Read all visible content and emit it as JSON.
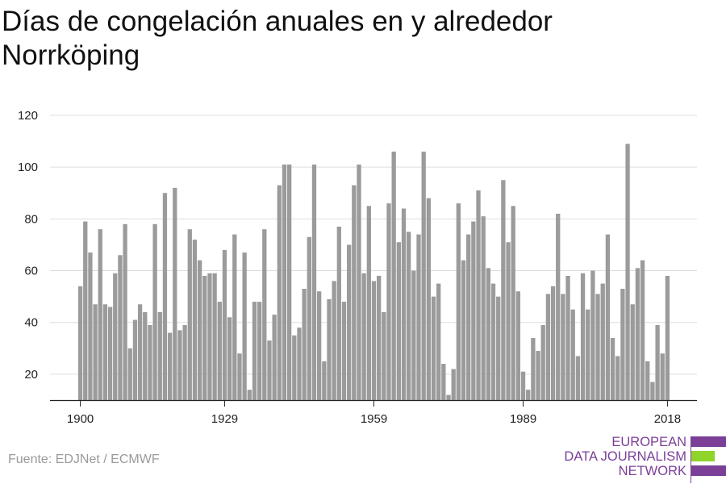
{
  "title": "Días de congelación anuales en y alrededor Norrköping",
  "source": "Fuente: EDJNet / ECMWF",
  "logo": {
    "line1": "EUROPEAN",
    "line2": "DATA JOURNALISM",
    "line3": "NETWORK",
    "colors": {
      "text": "#7b3f98",
      "purple": "#7b3f98",
      "green": "#8fd42a"
    }
  },
  "chart_data": {
    "type": "bar",
    "title": "Días de congelación anuales en y alrededor Norrköping",
    "xlabel": "",
    "ylabel": "",
    "x_ticks": [
      1900,
      1929,
      1959,
      1989,
      2018
    ],
    "y_ticks": [
      20,
      40,
      60,
      80,
      100,
      120
    ],
    "xlim": [
      1899.5,
      2018.5
    ],
    "ylim": [
      10,
      120
    ],
    "grid": true,
    "bar_color": "#9b9b9b",
    "series": [
      {
        "x": [
          1900,
          1901,
          1902,
          1903,
          1904,
          1905,
          1906,
          1907,
          1908,
          1909,
          1910,
          1911,
          1912,
          1913,
          1914,
          1915,
          1916,
          1917,
          1918,
          1919,
          1920,
          1921,
          1922,
          1923,
          1924,
          1925,
          1926,
          1927,
          1928,
          1929,
          1930,
          1931,
          1932,
          1933,
          1934,
          1935,
          1936,
          1937,
          1938,
          1939,
          1940,
          1941,
          1942,
          1943,
          1944,
          1945,
          1946,
          1947,
          1948,
          1949,
          1950,
          1951,
          1952,
          1953,
          1954,
          1955,
          1956,
          1957,
          1958,
          1959,
          1960,
          1961,
          1962,
          1963,
          1964,
          1965,
          1966,
          1967,
          1968,
          1969,
          1970,
          1971,
          1972,
          1973,
          1974,
          1975,
          1976,
          1977,
          1978,
          1979,
          1980,
          1981,
          1982,
          1983,
          1984,
          1985,
          1986,
          1987,
          1988,
          1989,
          1990,
          1991,
          1992,
          1993,
          1994,
          1995,
          1996,
          1997,
          1998,
          1999,
          2000,
          2001,
          2002,
          2003,
          2004,
          2005,
          2006,
          2007,
          2008,
          2009,
          2010,
          2011,
          2012,
          2013,
          2014,
          2015,
          2016,
          2017,
          2018
        ],
        "values": [
          54,
          79,
          67,
          47,
          76,
          47,
          46,
          59,
          66,
          78,
          30,
          41,
          47,
          44,
          39,
          78,
          44,
          90,
          36,
          92,
          37,
          39,
          76,
          72,
          64,
          58,
          59,
          59,
          48,
          68,
          42,
          74,
          28,
          67,
          14,
          48,
          48,
          76,
          33,
          43,
          93,
          101,
          101,
          35,
          38,
          53,
          73,
          101,
          52,
          25,
          49,
          56,
          77,
          48,
          70,
          93,
          101,
          59,
          85,
          56,
          58,
          44,
          86,
          106,
          71,
          84,
          75,
          60,
          74,
          106,
          88,
          50,
          55,
          24,
          12,
          22,
          86,
          64,
          74,
          79,
          91,
          81,
          61,
          55,
          50,
          95,
          71,
          85,
          52,
          21,
          14,
          34,
          29,
          39,
          51,
          54,
          82,
          51,
          58,
          45,
          27,
          59,
          45,
          60,
          51,
          55,
          74,
          34,
          27,
          53,
          109,
          47,
          61,
          64,
          25,
          17,
          39,
          28,
          58
        ]
      }
    ]
  }
}
